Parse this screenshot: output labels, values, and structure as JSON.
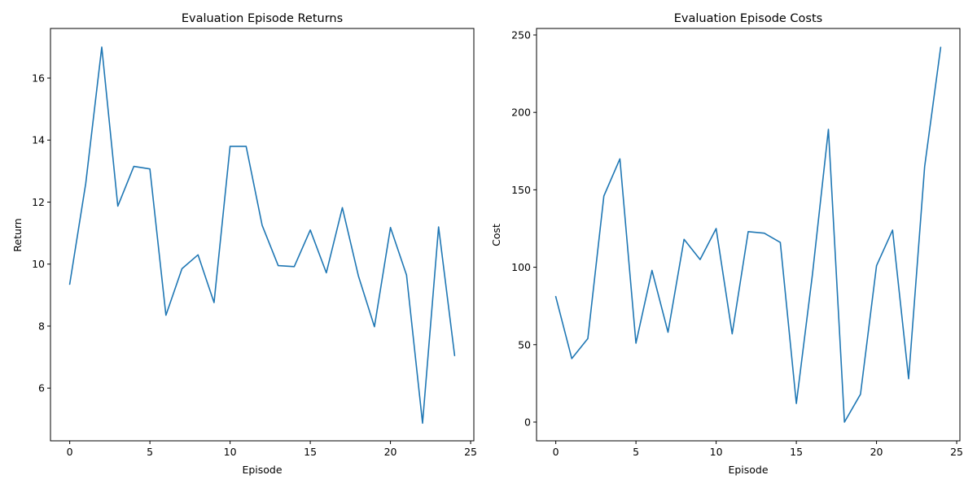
{
  "chart_data": [
    {
      "type": "line",
      "title": "Evaluation Episode Returns",
      "xlabel": "Episode",
      "ylabel": "Return",
      "xlim": [
        -1.2,
        25.2
      ],
      "ylim": [
        4.3,
        17.6
      ],
      "xticks": [
        0,
        5,
        10,
        15,
        20,
        25
      ],
      "yticks": [
        6,
        8,
        10,
        12,
        14,
        16
      ],
      "grid": false,
      "color": "#1f77b4",
      "x": [
        0,
        1,
        2,
        3,
        4,
        5,
        6,
        7,
        8,
        9,
        10,
        11,
        12,
        13,
        14,
        15,
        16,
        17,
        18,
        19,
        20,
        21,
        22,
        23,
        24
      ],
      "series": [
        {
          "values": [
            9.35,
            12.6,
            17.0,
            11.87,
            13.15,
            13.07,
            8.35,
            9.85,
            10.3,
            8.76,
            13.8,
            13.8,
            11.25,
            9.95,
            9.92,
            11.1,
            9.72,
            11.82,
            9.62,
            7.98,
            11.18,
            9.65,
            4.87,
            11.2,
            7.05
          ]
        }
      ]
    },
    {
      "type": "line",
      "title": "Evaluation Episode Costs",
      "xlabel": "Episode",
      "ylabel": "Cost",
      "xlim": [
        -1.2,
        25.2
      ],
      "ylim": [
        -12.1,
        254.2
      ],
      "xticks": [
        0,
        5,
        10,
        15,
        20,
        25
      ],
      "yticks": [
        0,
        50,
        100,
        150,
        200,
        250
      ],
      "grid": false,
      "color": "#1f77b4",
      "x": [
        0,
        1,
        2,
        3,
        4,
        5,
        6,
        7,
        8,
        9,
        10,
        11,
        12,
        13,
        14,
        15,
        16,
        17,
        18,
        19,
        20,
        21,
        22,
        23,
        24
      ],
      "series": [
        {
          "values": [
            81,
            41,
            54,
            146,
            170,
            51,
            98,
            58,
            118,
            105,
            125,
            57,
            123,
            122,
            116,
            12,
            95,
            189,
            0,
            18,
            101,
            124,
            28,
            165,
            242
          ]
        }
      ]
    }
  ]
}
